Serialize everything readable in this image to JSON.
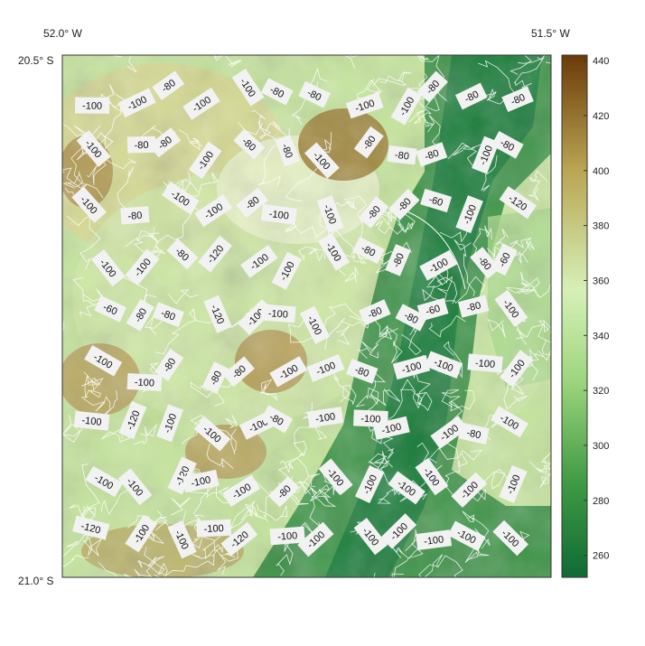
{
  "map": {
    "corner_labels": {
      "top_left_lon": "52.0° W",
      "top_right_lon": "51.5° W",
      "top_lat": "20.5° S",
      "bottom_lat": "21.0° S"
    },
    "colorbar": {
      "ticks": [
        "440",
        "420",
        "400",
        "380",
        "360",
        "340",
        "320",
        "300",
        "280",
        "260"
      ],
      "tick_values": [
        440,
        420,
        400,
        380,
        360,
        340,
        320,
        300,
        280,
        260
      ],
      "range": [
        252,
        442
      ],
      "colors": {
        "low": "#0f6b34",
        "mid_low": "#4fa94a",
        "mid": "#d6f0b8",
        "mid_high": "#b9a552",
        "high": "#6b3a08"
      }
    },
    "contour_labels": [
      {
        "text": "-100"
      },
      {
        "text": "-100"
      },
      {
        "text": "-80"
      },
      {
        "text": "-100"
      },
      {
        "text": "-100"
      },
      {
        "text": "-80"
      },
      {
        "text": "-80"
      },
      {
        "text": "-100"
      },
      {
        "text": "-100"
      },
      {
        "text": "-80"
      },
      {
        "text": "-80"
      },
      {
        "text": "-80"
      },
      {
        "text": "-100"
      },
      {
        "text": "-80"
      },
      {
        "text": "-80"
      },
      {
        "text": "-100"
      },
      {
        "text": "-80"
      },
      {
        "text": "-80"
      },
      {
        "text": "-100"
      },
      {
        "text": "-80"
      },
      {
        "text": "-80"
      },
      {
        "text": "-80"
      },
      {
        "text": "-100"
      },
      {
        "text": "-80"
      },
      {
        "text": "-100"
      },
      {
        "text": "-80"
      },
      {
        "text": "-100"
      },
      {
        "text": "-100"
      },
      {
        "text": "-80"
      },
      {
        "text": "-100"
      },
      {
        "text": "-100"
      },
      {
        "text": "-80"
      },
      {
        "text": "-80"
      },
      {
        "text": "-60"
      },
      {
        "text": "-100"
      },
      {
        "text": "-120"
      },
      {
        "text": "-100"
      },
      {
        "text": "-100"
      },
      {
        "text": "-80"
      },
      {
        "text": "-120"
      },
      {
        "text": "-100"
      },
      {
        "text": "-100"
      },
      {
        "text": "-100"
      },
      {
        "text": "-80"
      },
      {
        "text": "-80"
      },
      {
        "text": "-100"
      },
      {
        "text": "-80"
      },
      {
        "text": "-60"
      },
      {
        "text": "-60"
      },
      {
        "text": "-80"
      },
      {
        "text": "-80"
      },
      {
        "text": "-120"
      },
      {
        "text": "-100"
      },
      {
        "text": "-100"
      },
      {
        "text": "-100"
      },
      {
        "text": "-80"
      },
      {
        "text": "-80"
      },
      {
        "text": "-60"
      },
      {
        "text": "-80"
      },
      {
        "text": "-100"
      },
      {
        "text": "-100"
      },
      {
        "text": "-100"
      },
      {
        "text": "-80"
      },
      {
        "text": "-80"
      },
      {
        "text": "-80"
      },
      {
        "text": "-100"
      },
      {
        "text": "-100"
      },
      {
        "text": "-80"
      },
      {
        "text": "-100"
      },
      {
        "text": "-100"
      },
      {
        "text": "-100"
      },
      {
        "text": "-100"
      },
      {
        "text": "-100"
      },
      {
        "text": "-120"
      },
      {
        "text": "-100"
      },
      {
        "text": "-100"
      },
      {
        "text": "-100"
      },
      {
        "text": "-80"
      },
      {
        "text": "-100"
      },
      {
        "text": "-100"
      },
      {
        "text": "-100"
      },
      {
        "text": "-100"
      },
      {
        "text": "-80"
      },
      {
        "text": "-100"
      },
      {
        "text": "-100"
      },
      {
        "text": "-100"
      },
      {
        "text": "-120"
      },
      {
        "text": "-100"
      },
      {
        "text": "-100"
      },
      {
        "text": "-80"
      },
      {
        "text": "-100"
      },
      {
        "text": "-100"
      },
      {
        "text": "-100"
      },
      {
        "text": "-100"
      },
      {
        "text": "-100"
      },
      {
        "text": "-100"
      },
      {
        "text": "-120"
      },
      {
        "text": "-100"
      },
      {
        "text": "-100"
      },
      {
        "text": "-100"
      },
      {
        "text": "-120"
      },
      {
        "text": "-100"
      },
      {
        "text": "-100"
      },
      {
        "text": "-100"
      },
      {
        "text": "-100"
      },
      {
        "text": "-100"
      },
      {
        "text": "-100"
      },
      {
        "text": "-100"
      }
    ]
  }
}
